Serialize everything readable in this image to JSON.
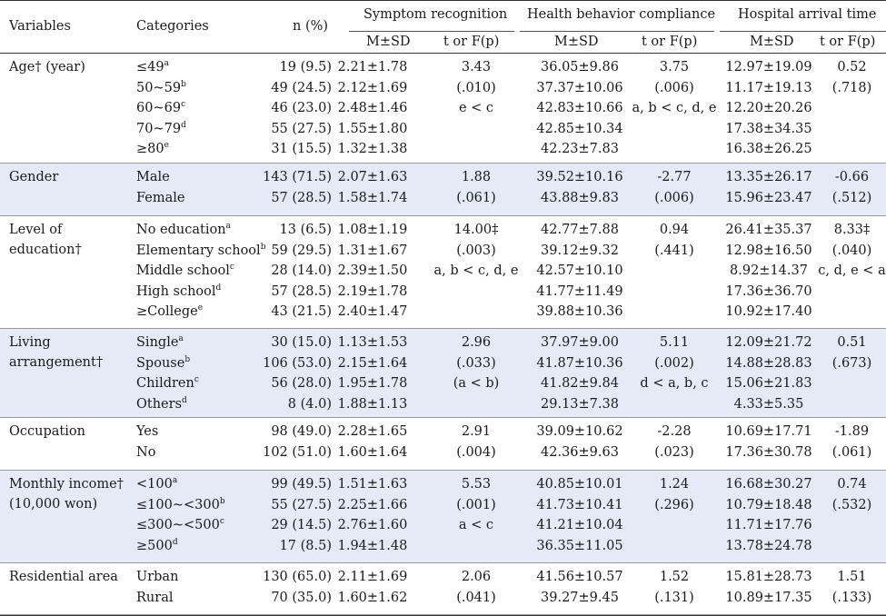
{
  "header": {
    "variables": "Variables",
    "categories": "Categories",
    "n_pct": "n (%)",
    "symptom": "Symptom recognition",
    "health": "Health behavior compliance",
    "arrival": "Hospital arrival time",
    "msd": "M±SD",
    "tf": "t or F(p)"
  },
  "groups": [
    {
      "variable": "Age† (year)",
      "rows": [
        {
          "cat": "≤49",
          "sup": "a",
          "n": "19 (9.5)",
          "s_msd": "2.21±1.78",
          "s_tf": "3.43",
          "h_msd": "36.05±9.86",
          "h_tf": "3.75",
          "a_msd": "12.97±19.09",
          "a_tf": "0.52"
        },
        {
          "cat": "50~59",
          "sup": "b",
          "n": "49 (24.5)",
          "s_msd": "2.12±1.69",
          "s_tf": "(.010)",
          "h_msd": "37.37±10.06",
          "h_tf": "(.006)",
          "a_msd": "11.17±19.13",
          "a_tf": "(.718)"
        },
        {
          "cat": "60~69",
          "sup": "c",
          "n": "46 (23.0)",
          "s_msd": "2.48±1.46",
          "s_tf": "e < c",
          "h_msd": "42.83±10.66",
          "h_tf": "a, b < c, d, e",
          "a_msd": "12.20±20.26",
          "a_tf": ""
        },
        {
          "cat": "70~79",
          "sup": "d",
          "n": "55 (27.5)",
          "s_msd": "1.55±1.80",
          "s_tf": "",
          "h_msd": "42.85±10.34",
          "h_tf": "",
          "a_msd": "17.38±34.35",
          "a_tf": ""
        },
        {
          "cat": "≥80",
          "sup": "e",
          "n": "31 (15.5)",
          "s_msd": "1.32±1.38",
          "s_tf": "",
          "h_msd": "42.23±7.83",
          "h_tf": "",
          "a_msd": "16.38±26.25",
          "a_tf": ""
        }
      ]
    },
    {
      "variable": "Gender",
      "rows": [
        {
          "cat": "Male",
          "sup": "",
          "n": "143 (71.5)",
          "s_msd": "2.07±1.63",
          "s_tf": "1.88",
          "h_msd": "39.52±10.16",
          "h_tf": "-2.77",
          "a_msd": "13.35±26.17",
          "a_tf": "-0.66"
        },
        {
          "cat": "Female",
          "sup": "",
          "n": "57 (28.5)",
          "s_msd": "1.58±1.74",
          "s_tf": "(.061)",
          "h_msd": "43.88±9.83",
          "h_tf": "(.006)",
          "a_msd": "15.96±23.47",
          "a_tf": "(.512)"
        }
      ]
    },
    {
      "variable": "Level of education†",
      "rows": [
        {
          "cat": "No education",
          "sup": "a",
          "n": "13 (6.5)",
          "s_msd": "1.08±1.19",
          "s_tf": "14.00‡",
          "h_msd": "42.77±7.88",
          "h_tf": "0.94",
          "a_msd": "26.41±35.37",
          "a_tf": "8.33‡"
        },
        {
          "cat": "Elementary school",
          "sup": "b",
          "n": "59 (29.5)",
          "s_msd": "1.31±1.67",
          "s_tf": "(.003)",
          "h_msd": "39.12±9.32",
          "h_tf": "(.441)",
          "a_msd": "12.98±16.50",
          "a_tf": "(.040)"
        },
        {
          "cat": "Middle school",
          "sup": "c",
          "n": "28 (14.0)",
          "s_msd": "2.39±1.50",
          "s_tf": "a, b < c, d, e",
          "h_msd": "42.57±10.10",
          "h_tf": "",
          "a_msd": "8.92±14.37",
          "a_tf": "c, d, e < a"
        },
        {
          "cat": "High school",
          "sup": "d",
          "n": "57 (28.5)",
          "s_msd": "2.19±1.78",
          "s_tf": "",
          "h_msd": "41.77±11.49",
          "h_tf": "",
          "a_msd": "17.36±36.70",
          "a_tf": ""
        },
        {
          "cat": "≥College",
          "sup": "e",
          "n": "43 (21.5)",
          "s_msd": "2.40±1.47",
          "s_tf": "",
          "h_msd": "39.88±10.36",
          "h_tf": "",
          "a_msd": "10.92±17.40",
          "a_tf": ""
        }
      ]
    },
    {
      "variable": "Living arrangement†",
      "rows": [
        {
          "cat": "Single",
          "sup": "a",
          "n": "30 (15.0)",
          "s_msd": "1.13±1.53",
          "s_tf": "2.96",
          "h_msd": "37.97±9.00",
          "h_tf": "5.11",
          "a_msd": "12.09±21.72",
          "a_tf": "0.51"
        },
        {
          "cat": "Spouse",
          "sup": "b",
          "n": "106 (53.0)",
          "s_msd": "2.15±1.64",
          "s_tf": "(.033)",
          "h_msd": "41.87±10.36",
          "h_tf": "(.002)",
          "a_msd": "14.88±28.83",
          "a_tf": "(.673)"
        },
        {
          "cat": "Children",
          "sup": "c",
          "n": "56 (28.0)",
          "s_msd": "1.95±1.78",
          "s_tf": "(a < b)",
          "h_msd": "41.82±9.84",
          "h_tf": "d < a, b, c",
          "a_msd": "15.06±21.83",
          "a_tf": ""
        },
        {
          "cat": "Others",
          "sup": "d",
          "n": "8 (4.0)",
          "s_msd": "1.88±1.13",
          "s_tf": "",
          "h_msd": "29.13±7.38",
          "h_tf": "",
          "a_msd": "4.33±5.35",
          "a_tf": ""
        }
      ]
    },
    {
      "variable": "Occupation",
      "rows": [
        {
          "cat": "Yes",
          "sup": "",
          "n": "98 (49.0)",
          "s_msd": "2.28±1.65",
          "s_tf": "2.91",
          "h_msd": "39.09±10.62",
          "h_tf": "-2.28",
          "a_msd": "10.69±17.71",
          "a_tf": "-1.89"
        },
        {
          "cat": "No",
          "sup": "",
          "n": "102 (51.0)",
          "s_msd": "1.60±1.64",
          "s_tf": "(.004)",
          "h_msd": "42.36±9.63",
          "h_tf": "(.023)",
          "a_msd": "17.36±30.78",
          "a_tf": "(.061)"
        }
      ]
    },
    {
      "variable": "Monthly income† (10,000 won)",
      "rows": [
        {
          "cat": "<100",
          "sup": "a",
          "n": "99 (49.5)",
          "s_msd": "1.51±1.63",
          "s_tf": "5.53",
          "h_msd": "40.85±10.01",
          "h_tf": "1.24",
          "a_msd": "16.68±30.27",
          "a_tf": "0.74"
        },
        {
          "cat": "≤100~<300",
          "sup": "b",
          "n": "55 (27.5)",
          "s_msd": "2.25±1.66",
          "s_tf": "(.001)",
          "h_msd": "41.73±10.41",
          "h_tf": "(.296)",
          "a_msd": "10.79±18.48",
          "a_tf": "(.532)"
        },
        {
          "cat": "≤300~<500",
          "sup": "c",
          "n": "29 (14.5)",
          "s_msd": "2.76±1.60",
          "s_tf": "a < c",
          "h_msd": "41.21±10.04",
          "h_tf": "",
          "a_msd": "11.71±17.76",
          "a_tf": ""
        },
        {
          "cat": "≥500",
          "sup": "d",
          "n": "17 (8.5)",
          "s_msd": "1.94±1.48",
          "s_tf": "",
          "h_msd": "36.35±11.05",
          "h_tf": "",
          "a_msd": "13.78±24.78",
          "a_tf": ""
        }
      ]
    },
    {
      "variable": "Residential area",
      "rows": [
        {
          "cat": "Urban",
          "sup": "",
          "n": "130 (65.0)",
          "s_msd": "2.11±1.69",
          "s_tf": "2.06",
          "h_msd": "41.56±10.57",
          "h_tf": "1.52",
          "a_msd": "15.81±28.73",
          "a_tf": "1.51"
        },
        {
          "cat": "Rural",
          "sup": "",
          "n": "70 (35.0)",
          "s_msd": "1.60±1.62",
          "s_tf": "(.041)",
          "h_msd": "39.27±9.45",
          "h_tf": "(.131)",
          "a_msd": "10.89±17.35",
          "a_tf": "(.133)"
        }
      ]
    }
  ]
}
